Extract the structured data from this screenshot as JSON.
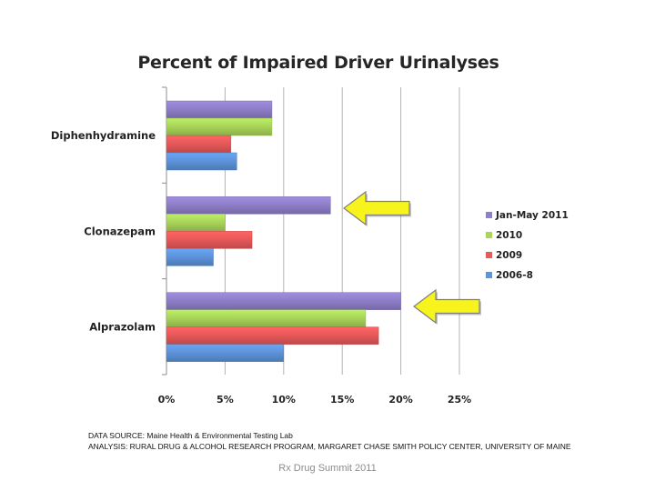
{
  "colors": {
    "series": [
      "#8f7fc9",
      "#a9d65a",
      "#e8595a",
      "#5e94dc"
    ],
    "arrow_fill": "#f7f31c",
    "arrow_stroke": "#7f7f7f"
  },
  "chart_data": {
    "type": "bar",
    "orientation": "horizontal",
    "title": "Percent of Impaired Driver Urinalyses",
    "categories": [
      "Diphenhydramine",
      "Clonazepam",
      "Alprazolam"
    ],
    "series": [
      {
        "name": "Jan-May 2011",
        "values": [
          9,
          14,
          20
        ]
      },
      {
        "name": "2010",
        "values": [
          9,
          5,
          17
        ]
      },
      {
        "name": "2009",
        "values": [
          5.5,
          7.3,
          18.1
        ]
      },
      {
        "name": "2006-8",
        "values": [
          6,
          4,
          10
        ]
      }
    ],
    "xlim": [
      0,
      25
    ],
    "xticks": [
      "0%",
      "5%",
      "10%",
      "15%",
      "20%",
      "25%"
    ],
    "grid": true,
    "legend_position": "right",
    "annotations": [
      {
        "type": "arrow",
        "points_to": "Clonazepam Jan-May 2011"
      },
      {
        "type": "arrow",
        "points_to": "Alprazolam Jan-May 2011"
      }
    ]
  },
  "source_lines": [
    "DATA SOURCE: Maine Health & Environmental Testing Lab",
    "ANALYSIS: RURAL DRUG & ALCOHOL RESEARCH PROGRAM, MARGARET CHASE SMITH POLICY CENTER, UNIVERSITY OF MAINE"
  ],
  "footer": "Rx Drug Summit 2011"
}
